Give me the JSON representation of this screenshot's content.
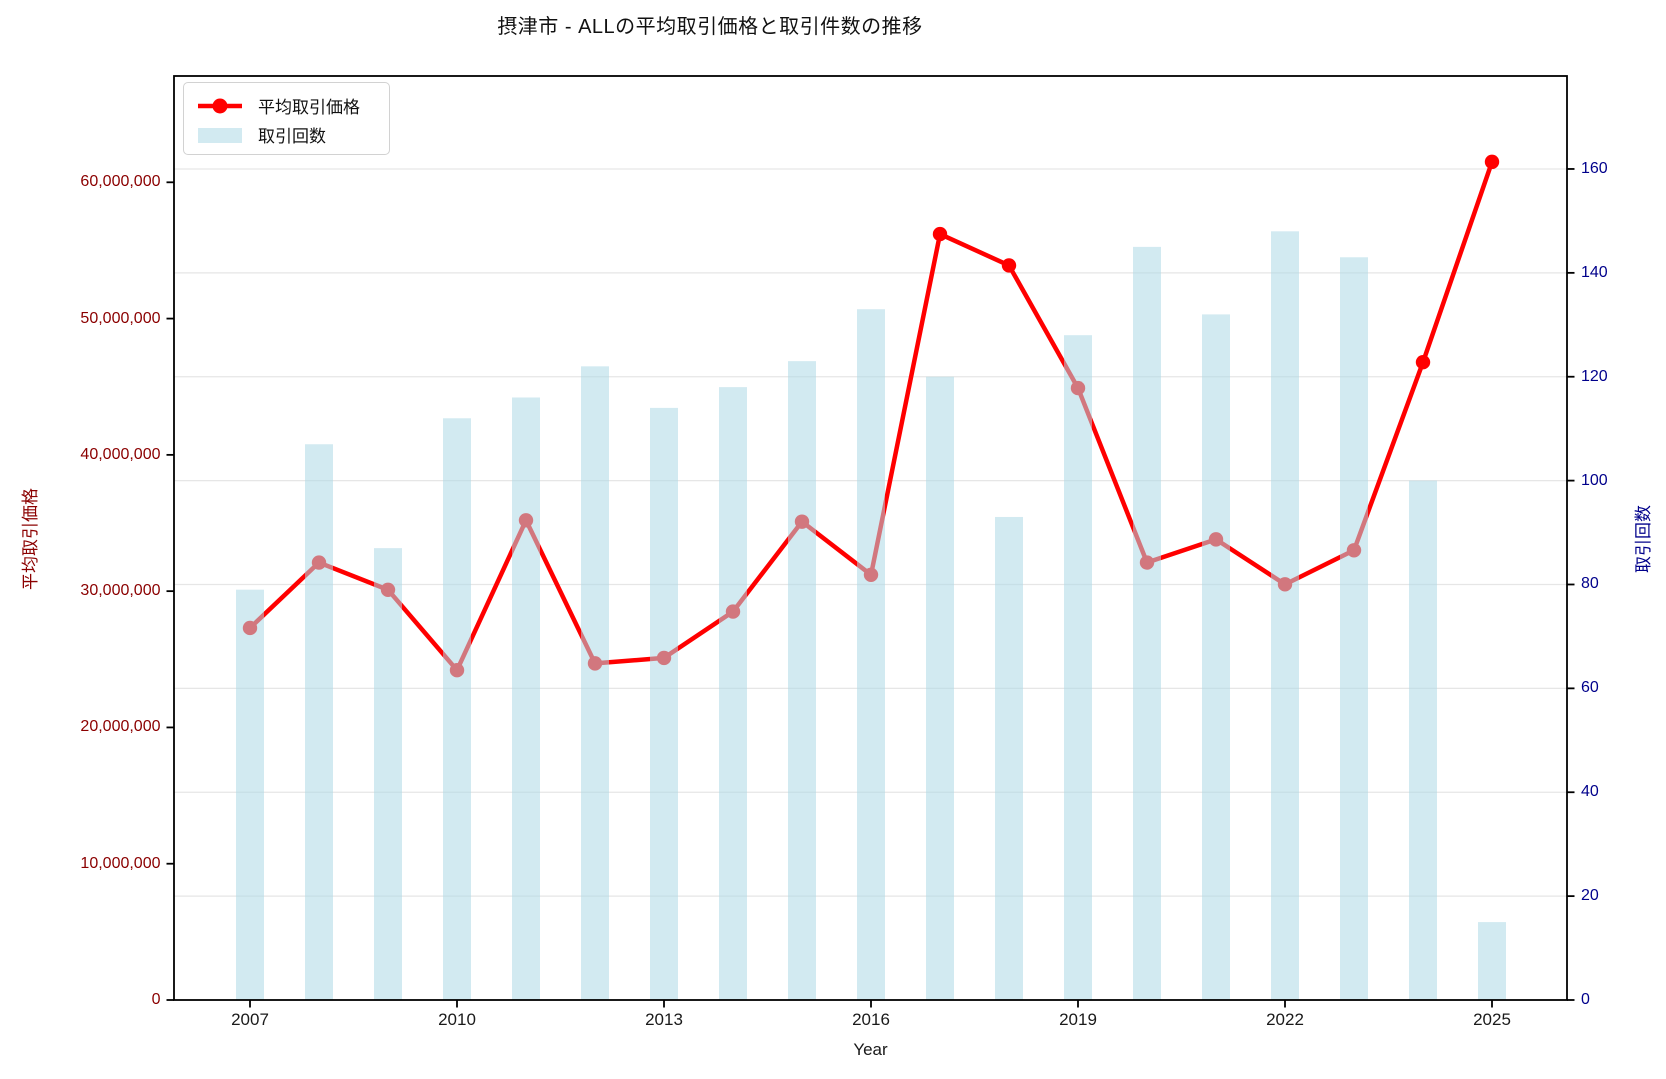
{
  "chart_data": {
    "type": "line+bar",
    "title": "摂津市 - ALLの平均取引価格と取引件数の推移",
    "xlabel": "Year",
    "ylabel_left": "平均取引価格",
    "ylabel_right": "取引回数",
    "legend": {
      "items": [
        {
          "label": "平均取引価格",
          "type": "line"
        },
        {
          "label": "取引回数",
          "type": "bar"
        }
      ]
    },
    "x": [
      2007,
      2008,
      2009,
      2010,
      2011,
      2012,
      2013,
      2014,
      2015,
      2016,
      2017,
      2018,
      2019,
      2020,
      2021,
      2022,
      2023,
      2024,
      2025
    ],
    "series": [
      {
        "name": "平均取引価格",
        "type": "line",
        "axis": "left",
        "color": "#ff0000",
        "values": [
          27300000,
          32100000,
          30100000,
          24200000,
          35200000,
          24700000,
          25100000,
          28500000,
          35100000,
          31200000,
          56200000,
          53900000,
          44900000,
          32100000,
          33800000,
          30500000,
          33000000,
          46800000,
          61500000
        ]
      },
      {
        "name": "取引回数",
        "type": "bar",
        "axis": "right",
        "color": "#add8e6",
        "opacity": 0.55,
        "values": [
          79,
          107,
          87,
          112,
          116,
          122,
          114,
          118,
          123,
          133,
          120,
          93,
          128,
          145,
          132,
          148,
          143,
          100,
          15
        ]
      }
    ],
    "left_axis": {
      "min": 0,
      "max": 67800000,
      "ticks": [
        0,
        10000000,
        20000000,
        30000000,
        40000000,
        50000000,
        60000000
      ],
      "color": "#8b0000"
    },
    "right_axis": {
      "min": 0,
      "max": 177.9,
      "ticks": [
        0,
        20,
        40,
        60,
        80,
        100,
        120,
        140,
        160
      ],
      "color": "#00008b",
      "grid": true
    },
    "x_ticks": [
      2007,
      2010,
      2013,
      2016,
      2019,
      2022,
      2025
    ],
    "grid_color": "#e6e6e6",
    "spine_color": "#000000"
  }
}
